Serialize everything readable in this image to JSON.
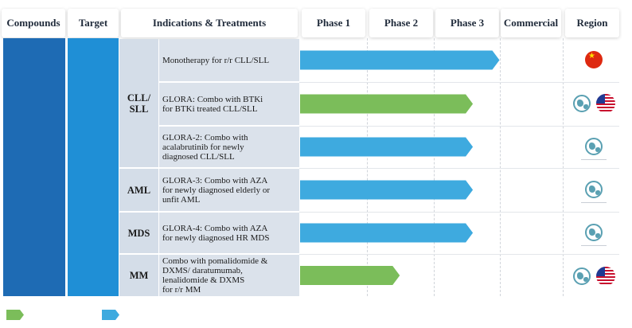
{
  "header": {
    "compounds": "Compounds",
    "target": "Target",
    "indications": "Indications & Treatments",
    "phase1": "Phase 1",
    "phase2": "Phase 2",
    "phase3": "Phase 3",
    "commercial": "Commercial",
    "region": "Region"
  },
  "groups": [
    {
      "label": "CLL/\nSLL"
    },
    {
      "label": "AML"
    },
    {
      "label": "MDS"
    },
    {
      "label": "MM"
    }
  ],
  "colors": {
    "compound_column": "#1e6bb4",
    "target_column": "#1f8fd6",
    "blue_bar": "#3eaadf",
    "green_bar": "#7bbd5a"
  },
  "chart_data": {
    "type": "bar",
    "stages": [
      "Phase 1",
      "Phase 2",
      "Phase 3",
      "Commercial"
    ],
    "rows": [
      {
        "treatment": "Monotherapy for r/r CLL/SLL",
        "progress": 3.0,
        "color": "blue",
        "regions": [
          "cn-flag"
        ]
      },
      {
        "treatment": "GLORA: Combo with BTKi\nfor BTKi treated CLL/SLL",
        "progress": 2.6,
        "color": "green",
        "regions": [
          "globe",
          "us-flag"
        ]
      },
      {
        "treatment": "GLORA-2: Combo with\nacalabrutinib for newly\ndiagnosed CLL/SLL",
        "progress": 2.6,
        "color": "blue",
        "regions": [
          "globe"
        ]
      },
      {
        "treatment": "GLORA-3: Combo with AZA\nfor newly diagnosed elderly or\nunfit AML",
        "progress": 2.6,
        "color": "blue",
        "regions": [
          "globe"
        ]
      },
      {
        "treatment": "GLORA-4: Combo with AZA\nfor newly diagnosed HR MDS",
        "progress": 2.6,
        "color": "blue",
        "regions": [
          "globe"
        ]
      },
      {
        "treatment": "Combo with pomalidomide &\nDXMS/    daratumumab,\nlenalidomide & DXMS\nfor r/r MM",
        "progress": 1.5,
        "color": "green",
        "regions": [
          "globe",
          "us-flag"
        ]
      }
    ],
    "legend": [
      {
        "color": "green"
      },
      {
        "color": "blue"
      }
    ]
  }
}
